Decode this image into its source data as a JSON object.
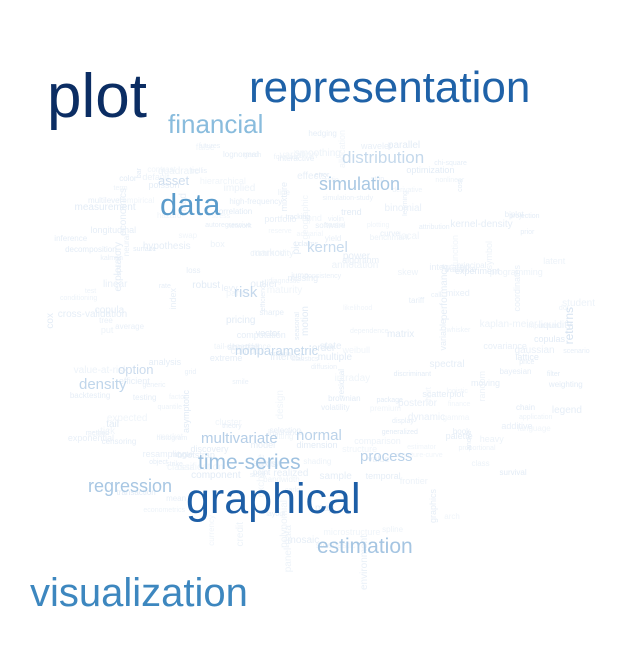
{
  "cloud": {
    "words": {
      "plot": {
        "text": "plot",
        "color": "#0b2d63"
      },
      "representation": {
        "text": "representation",
        "color": "#1f62a8"
      },
      "financial": {
        "text": "financial",
        "color": "#89bcdd"
      },
      "distribution": {
        "text": "distribution",
        "color": "#c5d9ec"
      },
      "asset": {
        "text": "asset",
        "color": "#cfdeef"
      },
      "simulation": {
        "text": "simulation",
        "color": "#a9c8e3"
      },
      "data": {
        "text": "data",
        "color": "#5a9bcb"
      },
      "kernel": {
        "text": "kernel",
        "color": "#c8dbee"
      },
      "risk": {
        "text": "risk",
        "color": "#c5d8ec"
      },
      "returns": {
        "text": "returns",
        "color": "#d6e3f1"
      },
      "nonparametric": {
        "text": "nonparametric",
        "color": "#c7daed"
      },
      "option": {
        "text": "option",
        "color": "#ccdcee"
      },
      "density": {
        "text": "density",
        "color": "#c0d6eb"
      },
      "normal": {
        "text": "normal",
        "color": "#bcd3ea"
      },
      "multivariate": {
        "text": "multivariate",
        "color": "#b5cee7"
      },
      "process": {
        "text": "process",
        "color": "#b9d1e9"
      },
      "timeseries": {
        "text": "time-series",
        "color": "#9ec1e0"
      },
      "regression": {
        "text": "regression",
        "color": "#a8c7e3"
      },
      "graphical": {
        "text": "graphical",
        "color": "#1d5ea6"
      },
      "estimation": {
        "text": "estimation",
        "color": "#a5c5e2"
      },
      "visualization": {
        "text": "visualization",
        "color": "#3d87bf"
      }
    },
    "background_words": [
      "statistics",
      "smoothing",
      "bootstrap",
      "quantile",
      "copula",
      "volatility",
      "portfolio",
      "variance",
      "mean",
      "model",
      "forecast",
      "spline",
      "bandwidth",
      "histogram",
      "scatterplot",
      "correlation",
      "likelihood",
      "bayesian",
      "prior",
      "posterior",
      "sample",
      "inference",
      "hypothesis",
      "test",
      "fitting",
      "curve",
      "surface",
      "contour",
      "matrix",
      "vector",
      "stochastic",
      "brownian",
      "motion",
      "pricing",
      "derivative",
      "hedging",
      "market",
      "stock",
      "price",
      "index",
      "interest",
      "rate",
      "yield",
      "bond",
      "credit",
      "default",
      "loss",
      "value",
      "tail",
      "extreme",
      "heavy",
      "garch",
      "arch",
      "autoregressive",
      "moving",
      "average",
      "trend",
      "seasonal",
      "decomposition",
      "spectral",
      "wavelet",
      "filter",
      "kalman",
      "state",
      "space",
      "markov",
      "chain",
      "monte",
      "carlo",
      "resampling",
      "cross-validation",
      "selection",
      "criteria",
      "estimator",
      "robust",
      "outlier",
      "residual",
      "diagnostic",
      "plotting",
      "chart",
      "graphics",
      "exploratory",
      "analysis",
      "interactive",
      "dynamic",
      "display",
      "dimension",
      "projection",
      "principal",
      "component",
      "cluster",
      "classification",
      "discriminant",
      "tree",
      "network",
      "neural",
      "learning",
      "algorithm",
      "computation",
      "software",
      "package",
      "programming",
      "language",
      "environment",
      "function",
      "object",
      "class",
      "method",
      "generic",
      "lattice",
      "trellis",
      "grid",
      "panel",
      "conditioning",
      "layout",
      "axis",
      "scale",
      "legend",
      "annotation",
      "color",
      "palette",
      "shading",
      "symbol",
      "point",
      "line",
      "bar",
      "pie",
      "box",
      "whisker",
      "violin",
      "strip",
      "dot",
      "mosaic",
      "parallel",
      "coordinates",
      "biplot",
      "map",
      "spatial",
      "geographic",
      "temporal",
      "longitudinal",
      "panel-data",
      "survival",
      "hazard",
      "censoring",
      "kaplan-meier",
      "proportional",
      "cox",
      "logistic",
      "poisson",
      "binomial",
      "gaussian",
      "student",
      "chi-square",
      "gamma",
      "beta",
      "exponential",
      "weibull",
      "lognormal",
      "mixture",
      "kernel-density",
      "local",
      "polynomial",
      "nonlinear",
      "additive",
      "generalized",
      "linear",
      "mixed",
      "effects",
      "random",
      "fixed",
      "hierarchical",
      "multilevel",
      "covariance",
      "structure",
      "factor",
      "latent",
      "variable",
      "measurement",
      "error",
      "missing",
      "imputation",
      "weighting",
      "survey",
      "design",
      "experiment",
      "anova",
      "contrast",
      "comparison",
      "multiple",
      "testing",
      "false",
      "discovery",
      "power",
      "efficiency",
      "consistency",
      "asymptotic",
      "theory",
      "simulation-study",
      "empirical",
      "application",
      "finance",
      "economics",
      "econometrics",
      "actuarial",
      "insurance",
      "claims",
      "reserve",
      "premium",
      "tariff",
      "exchange",
      "currency",
      "commodity",
      "futures",
      "swap",
      "call",
      "put",
      "strike",
      "maturity",
      "implied",
      "smile",
      "skew",
      "term",
      "structure-curve",
      "jump",
      "diffusion",
      "levy",
      "copulas",
      "dependence",
      "tail-dependence",
      "value-at-risk",
      "expected",
      "shortfall",
      "backtesting",
      "stress",
      "scenario",
      "allocation",
      "optimization",
      "efficient",
      "frontier",
      "sharpe",
      "ratio",
      "benchmark",
      "tracking",
      "performance",
      "attribution",
      "liquidity",
      "microstructure",
      "high-frequency",
      "intraday",
      "tick",
      "order",
      "book",
      "transaction",
      "cost",
      "realized",
      "integrated",
      "quadratic",
      "variation"
    ]
  }
}
